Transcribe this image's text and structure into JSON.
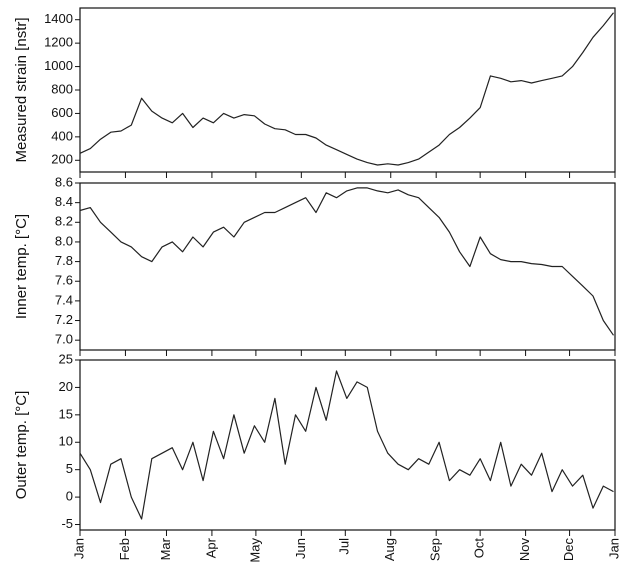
{
  "chart_data": [
    {
      "type": "line",
      "ylabel": "Measured strain [nstr]",
      "color": "#222222",
      "ylim": [
        100,
        1500
      ],
      "yticks": [
        200,
        400,
        600,
        800,
        1000,
        1200,
        1400
      ],
      "xlim": [
        0,
        365
      ],
      "xticks": [
        0,
        31,
        59,
        90,
        120,
        151,
        181,
        212,
        243,
        273,
        304,
        334,
        365
      ],
      "x": [
        0,
        7,
        14,
        21,
        28,
        35,
        42,
        49,
        56,
        63,
        70,
        77,
        84,
        91,
        98,
        105,
        112,
        119,
        126,
        133,
        140,
        147,
        154,
        161,
        168,
        175,
        182,
        189,
        196,
        203,
        210,
        217,
        224,
        231,
        238,
        245,
        252,
        259,
        266,
        273,
        280,
        287,
        294,
        301,
        308,
        315,
        322,
        329,
        336,
        343,
        350,
        357,
        364
      ],
      "values": [
        260,
        300,
        380,
        440,
        450,
        500,
        730,
        620,
        560,
        520,
        600,
        480,
        560,
        520,
        600,
        560,
        590,
        580,
        510,
        470,
        460,
        420,
        420,
        390,
        330,
        290,
        250,
        210,
        180,
        160,
        170,
        160,
        180,
        210,
        270,
        330,
        420,
        480,
        560,
        650,
        920,
        900,
        870,
        880,
        860,
        880,
        900,
        920,
        1000,
        1120,
        1250,
        1350,
        1460
      ]
    },
    {
      "type": "line",
      "ylabel": "Inner temp. [°C]",
      "color": "#222222",
      "ylim": [
        6.9,
        8.6
      ],
      "yticks": [
        {
          "value": 7.0,
          "label": "7.0"
        },
        7.2,
        7.4,
        7.6,
        7.8,
        {
          "value": 8.0,
          "label": "8.0"
        },
        8.2,
        8.4,
        8.6
      ],
      "xlim": [
        0,
        365
      ],
      "xticks": [
        0,
        31,
        59,
        90,
        120,
        151,
        181,
        212,
        243,
        273,
        304,
        334,
        365
      ],
      "x": [
        0,
        7,
        14,
        21,
        28,
        35,
        42,
        49,
        56,
        63,
        70,
        77,
        84,
        91,
        98,
        105,
        112,
        119,
        126,
        133,
        140,
        147,
        154,
        161,
        168,
        175,
        182,
        189,
        196,
        203,
        210,
        217,
        224,
        231,
        238,
        245,
        252,
        259,
        266,
        273,
        280,
        287,
        294,
        301,
        308,
        315,
        322,
        329,
        336,
        343,
        350,
        357,
        364
      ],
      "values": [
        8.32,
        8.35,
        8.2,
        8.1,
        8.0,
        7.95,
        7.85,
        7.8,
        7.95,
        8.0,
        7.9,
        8.05,
        7.95,
        8.1,
        8.15,
        8.05,
        8.2,
        8.25,
        8.3,
        8.3,
        8.35,
        8.4,
        8.45,
        8.3,
        8.5,
        8.45,
        8.52,
        8.55,
        8.55,
        8.52,
        8.5,
        8.53,
        8.48,
        8.45,
        8.35,
        8.25,
        8.1,
        7.9,
        7.75,
        8.05,
        7.88,
        7.82,
        7.8,
        7.8,
        7.78,
        7.77,
        7.75,
        7.75,
        7.65,
        7.55,
        7.45,
        7.2,
        7.05
      ]
    },
    {
      "type": "line",
      "ylabel": "Outer temp. [°C]",
      "color": "#222222",
      "ylim": [
        -6,
        25
      ],
      "yticks": [
        -5,
        0,
        5,
        10,
        15,
        20,
        25
      ],
      "xlim": [
        0,
        365
      ],
      "xticks": [
        {
          "value": 0,
          "label": "Jan"
        },
        {
          "value": 31,
          "label": "Feb"
        },
        {
          "value": 59,
          "label": "Mar"
        },
        {
          "value": 90,
          "label": "Apr"
        },
        {
          "value": 120,
          "label": "May"
        },
        {
          "value": 151,
          "label": "Jun"
        },
        {
          "value": 181,
          "label": "Jul"
        },
        {
          "value": 212,
          "label": "Aug"
        },
        {
          "value": 243,
          "label": "Sep"
        },
        {
          "value": 273,
          "label": "Oct"
        },
        {
          "value": 304,
          "label": "Nov"
        },
        {
          "value": 334,
          "label": "Dec"
        },
        {
          "value": 365,
          "label": "Jan"
        }
      ],
      "x": [
        0,
        7,
        14,
        21,
        28,
        35,
        42,
        49,
        56,
        63,
        70,
        77,
        84,
        91,
        98,
        105,
        112,
        119,
        126,
        133,
        140,
        147,
        154,
        161,
        168,
        175,
        182,
        189,
        196,
        203,
        210,
        217,
        224,
        231,
        238,
        245,
        252,
        259,
        266,
        273,
        280,
        287,
        294,
        301,
        308,
        315,
        322,
        329,
        336,
        343,
        350,
        357,
        364
      ],
      "values": [
        8,
        5,
        -1,
        6,
        7,
        0,
        -4,
        7,
        8,
        9,
        5,
        10,
        3,
        12,
        7,
        15,
        8,
        13,
        10,
        18,
        6,
        15,
        12,
        20,
        14,
        23,
        18,
        21,
        20,
        12,
        8,
        6,
        5,
        7,
        6,
        10,
        3,
        5,
        4,
        7,
        3,
        10,
        2,
        6,
        4,
        8,
        1,
        5,
        2,
        4,
        -2,
        2,
        1
      ]
    }
  ]
}
